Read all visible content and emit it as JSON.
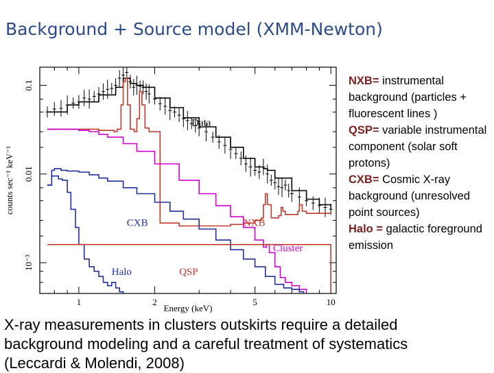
{
  "title": "Background + Source model (XMM-Newton)",
  "legend_notes": [
    {
      "key": "NXB=",
      "text": "instrumental background (particles + fluorescent lines )"
    },
    {
      "key": "QSP=",
      "text": "variable instrumental component (solar soft protons)"
    },
    {
      "key": "CXB=",
      "text": "Cosmic X-ray background (unresolved point sources)"
    },
    {
      "key": "Halo =",
      "text": "galactic foreground emission"
    }
  ],
  "caption": {
    "line1": "X-ray measurements in clusters outskirts require a detailed",
    "line2": "background modeling and a careful treatment of systematics",
    "line3": "(Leccardi & Molendi, 2008)"
  },
  "colors": {
    "title": "#2a4a8a",
    "data": "#000000",
    "nxb": "#c0392b",
    "cluster": "#d000d0",
    "cxb": "#1f2f9f",
    "halo": "#1f2f9f",
    "qsp": "#c0392b"
  },
  "chart_data": {
    "type": "line",
    "xlabel": "Energy (keV)",
    "ylabel": "counts sec⁻¹ keV⁻¹",
    "xscale": "log",
    "yscale": "log",
    "xlim": [
      0.7,
      10.5
    ],
    "ylim": [
      0.00045,
      0.16
    ],
    "xticks": [
      {
        "value": 1,
        "label": "1"
      },
      {
        "value": 2,
        "label": "2"
      },
      {
        "value": 5,
        "label": "5"
      },
      {
        "value": 10,
        "label": "10"
      }
    ],
    "yticks": [
      {
        "value": 0.1,
        "label": "0.1"
      },
      {
        "value": 0.01,
        "label": "0.01"
      },
      {
        "value": 0.001,
        "label": "10⁻³"
      }
    ],
    "labels": [
      {
        "text": "Data",
        "x": 2.8,
        "y": 0.035
      },
      {
        "text": "CXB",
        "x": 1.55,
        "y": 0.0026
      },
      {
        "text": "NXB",
        "x": 4.5,
        "y": 0.0026
      },
      {
        "text": "Cluster",
        "x": 5.9,
        "y": 0.00135
      },
      {
        "text": "Halo",
        "x": 1.35,
        "y": 0.00073
      },
      {
        "text": "QSP",
        "x": 2.5,
        "y": 0.00073
      }
    ],
    "series": [
      {
        "name": "Data",
        "color": "#000000",
        "style": "points",
        "x": [
          0.75,
          0.8,
          0.85,
          0.9,
          0.95,
          1.0,
          1.05,
          1.1,
          1.15,
          1.2,
          1.25,
          1.3,
          1.35,
          1.4,
          1.45,
          1.5,
          1.55,
          1.6,
          1.65,
          1.7,
          1.75,
          1.8,
          1.85,
          1.9,
          2.0,
          2.1,
          2.2,
          2.3,
          2.4,
          2.5,
          2.6,
          2.7,
          2.8,
          2.9,
          3.0,
          3.2,
          3.4,
          3.6,
          3.8,
          4.0,
          4.2,
          4.4,
          4.6,
          4.8,
          5.0,
          5.2,
          5.4,
          5.6,
          5.8,
          6.0,
          6.2,
          6.4,
          6.6,
          6.8,
          7.0,
          7.5,
          8.0,
          8.5,
          9.0,
          9.5,
          10.0
        ],
        "y": [
          0.05,
          0.054,
          0.055,
          0.06,
          0.063,
          0.065,
          0.072,
          0.07,
          0.075,
          0.08,
          0.085,
          0.09,
          0.092,
          0.1,
          0.12,
          0.13,
          0.14,
          0.11,
          0.095,
          0.1,
          0.098,
          0.095,
          0.085,
          0.08,
          0.07,
          0.062,
          0.058,
          0.052,
          0.05,
          0.046,
          0.042,
          0.04,
          0.037,
          0.035,
          0.033,
          0.03,
          0.026,
          0.023,
          0.021,
          0.019,
          0.017,
          0.015,
          0.013,
          0.012,
          0.011,
          0.0105,
          0.012,
          0.01,
          0.0085,
          0.008,
          0.0072,
          0.007,
          0.0075,
          0.0065,
          0.006,
          0.0055,
          0.005,
          0.0047,
          0.0044,
          0.0042,
          0.004
        ]
      },
      {
        "name": "Data model",
        "color": "#000000",
        "style": "line",
        "x": [
          0.75,
          0.9,
          1.0,
          1.2,
          1.4,
          1.5,
          1.6,
          1.7,
          1.8,
          2.0,
          2.3,
          2.6,
          3.0,
          3.5,
          4.0,
          4.5,
          5.0,
          5.4,
          5.6,
          6.0,
          7.0,
          8.0,
          9.0,
          10.0
        ],
        "y": [
          0.05,
          0.06,
          0.065,
          0.078,
          0.095,
          0.12,
          0.105,
          0.1,
          0.095,
          0.072,
          0.056,
          0.043,
          0.034,
          0.026,
          0.02,
          0.015,
          0.012,
          0.0115,
          0.011,
          0.009,
          0.0065,
          0.0052,
          0.0045,
          0.004
        ]
      },
      {
        "name": "NXB",
        "color": "#c0392b",
        "style": "line",
        "x": [
          0.75,
          1.0,
          1.2,
          1.38,
          1.42,
          1.47,
          1.5,
          1.53,
          1.56,
          1.6,
          1.66,
          1.7,
          1.74,
          1.78,
          1.83,
          1.9,
          2.1,
          2.5,
          3.0,
          3.5,
          4.0,
          4.5,
          5.0,
          5.3,
          5.4,
          5.5,
          5.6,
          5.8,
          6.0,
          6.2,
          6.35,
          6.45,
          6.6,
          7.0,
          7.4,
          7.5,
          7.7,
          8.0,
          8.5,
          9.0,
          10.0
        ],
        "y": [
          0.032,
          0.032,
          0.031,
          0.03,
          0.032,
          0.06,
          0.11,
          0.12,
          0.06,
          0.032,
          0.03,
          0.042,
          0.085,
          0.06,
          0.033,
          0.03,
          0.0028,
          0.0026,
          0.0026,
          0.0026,
          0.0027,
          0.0028,
          0.003,
          0.0032,
          0.0045,
          0.006,
          0.0045,
          0.0032,
          0.0032,
          0.0034,
          0.0042,
          0.0038,
          0.0035,
          0.0035,
          0.0038,
          0.0045,
          0.0038,
          0.0036,
          0.0036,
          0.0036,
          0.0036
        ]
      },
      {
        "name": "Cluster",
        "color": "#d000d0",
        "style": "line",
        "x": [
          0.75,
          0.8,
          0.9,
          1.0,
          1.1,
          1.2,
          1.3,
          1.5,
          1.7,
          2.0,
          2.5,
          3.0,
          3.5,
          4.0,
          4.5,
          5.0,
          5.4,
          5.55,
          5.7,
          6.0,
          6.3,
          6.6,
          7.0,
          7.5,
          8.0
        ],
        "y": [
          0.032,
          0.032,
          0.032,
          0.031,
          0.03,
          0.028,
          0.026,
          0.022,
          0.018,
          0.013,
          0.0085,
          0.006,
          0.0044,
          0.0033,
          0.0025,
          0.0018,
          0.0015,
          0.0016,
          0.0013,
          0.0009,
          0.00068,
          0.0006,
          0.00055,
          0.0005,
          0.00046
        ]
      },
      {
        "name": "CXB",
        "color": "#1f2f9f",
        "style": "line",
        "x": [
          0.75,
          0.78,
          0.8,
          0.85,
          0.9,
          1.0,
          1.1,
          1.2,
          1.3,
          1.5,
          1.7,
          2.0,
          2.3,
          2.6,
          3.0,
          3.5,
          4.0,
          4.5,
          5.0,
          5.5,
          6.0,
          6.5,
          7.0,
          7.5,
          7.8
        ],
        "y": [
          0.0075,
          0.011,
          0.0115,
          0.011,
          0.0108,
          0.0105,
          0.0098,
          0.009,
          0.0083,
          0.007,
          0.006,
          0.0048,
          0.0038,
          0.0031,
          0.0024,
          0.0018,
          0.0014,
          0.0011,
          0.0009,
          0.0007,
          0.00057,
          0.00052,
          0.0005,
          0.00047,
          0.00045
        ]
      },
      {
        "name": "Halo",
        "color": "#1f2f9f",
        "style": "line",
        "x": [
          0.75,
          0.78,
          0.8,
          0.83,
          0.86,
          0.9,
          0.93,
          0.97,
          1.0,
          1.05,
          1.1,
          1.15,
          1.2,
          1.25,
          1.3,
          1.35,
          1.4,
          1.45,
          1.5
        ],
        "y": [
          0.0075,
          0.0095,
          0.0095,
          0.0088,
          0.0085,
          0.0062,
          0.004,
          0.0025,
          0.0016,
          0.0011,
          0.0009,
          0.0008,
          0.0007,
          0.0006,
          0.00055,
          0.0006,
          0.00052,
          0.00047,
          0.00045
        ]
      },
      {
        "name": "QSP",
        "color": "#c0392b",
        "style": "line",
        "x": [
          0.75,
          10.0
        ],
        "y": [
          0.0016,
          0.00046
        ]
      }
    ]
  }
}
